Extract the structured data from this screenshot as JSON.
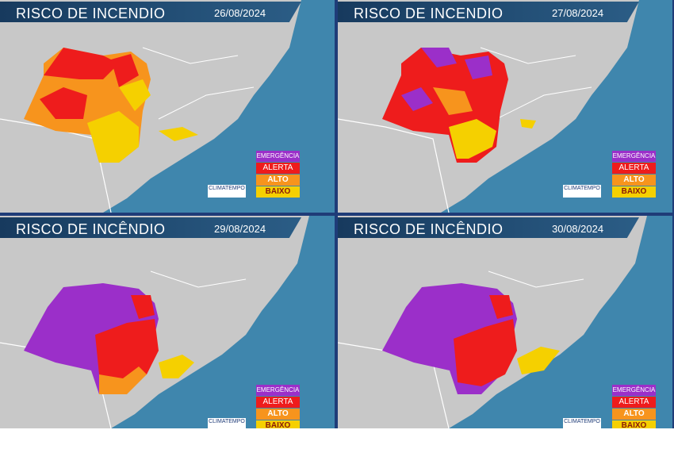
{
  "panels": [
    {
      "title": "RISCO DE INCENDIO",
      "date": "26/08/2024"
    },
    {
      "title": "RISCO DE INCENDIO",
      "date": "27/08/2024"
    },
    {
      "title": "RISCO DE INCÊNDIO",
      "date": "29/08/2024"
    },
    {
      "title": "RISCO DE INCÊNDIO",
      "date": "30/08/2024"
    }
  ],
  "legend": {
    "emergencia": "EMERGÊNCIA",
    "alerta": "ALERTA",
    "alto": "ALTO",
    "baixo": "BAIXO"
  },
  "logo": {
    "name": "CLIMATEMPO"
  },
  "colors": {
    "emergencia": "#9b2fc9",
    "alerta": "#ee1c1c",
    "alto": "#f7941d",
    "baixo": "#f5d000",
    "land": "#c8c8c8",
    "ocean": "#3f86ad"
  }
}
